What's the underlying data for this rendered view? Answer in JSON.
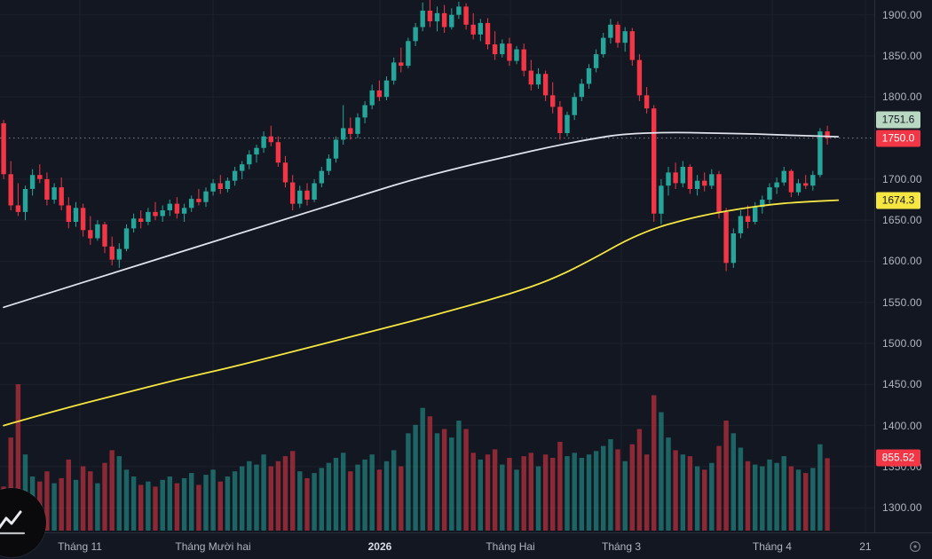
{
  "colors": {
    "background": "#131722",
    "up": "#26a69a",
    "down": "#f23645",
    "vol_up": "rgba(38,166,154,0.55)",
    "vol_down": "rgba(242,54,69,0.55)",
    "grid": "#1c212b",
    "axis_border": "#2a2e39",
    "axis_text": "#b2b5be",
    "price_line": "#9399a3",
    "ma_white": "#e0e3eb",
    "ma_yellow": "#f5e642"
  },
  "chart_data": {
    "type": "candlestick",
    "title": "",
    "slots": 121,
    "y_axis": {
      "min": 1270,
      "max": 1918,
      "ticks": [
        {
          "value": 1900,
          "label": "1900.00"
        },
        {
          "value": 1850,
          "label": "1850.00"
        },
        {
          "value": 1800,
          "label": "1800.00"
        },
        {
          "value": 1700,
          "label": "1700.00"
        },
        {
          "value": 1650,
          "label": "1650.00"
        },
        {
          "value": 1600,
          "label": "1600.00"
        },
        {
          "value": 1550,
          "label": "1550.00"
        },
        {
          "value": 1500,
          "label": "1500.00"
        },
        {
          "value": 1450,
          "label": "1450.00"
        },
        {
          "value": 1400,
          "label": "1400.00"
        },
        {
          "value": 1350,
          "label": "1350.00"
        },
        {
          "value": 1300,
          "label": "1300.00"
        }
      ]
    },
    "x_labels": [
      {
        "text": "Tháng 11",
        "xf": 0.0914,
        "year": false
      },
      {
        "text": "Tháng Mười hai",
        "xf": 0.2437,
        "year": false
      },
      {
        "text": "2026",
        "xf": 0.4345,
        "year": true
      },
      {
        "text": "Tháng Hai",
        "xf": 0.5838,
        "year": false
      },
      {
        "text": "Tháng 3",
        "xf": 0.7107,
        "year": false
      },
      {
        "text": "Tháng 4",
        "xf": 0.8832,
        "year": false
      },
      {
        "text": "21",
        "xf": 0.9898,
        "year": false
      }
    ],
    "last_price": {
      "price": 1750.0,
      "label": "1750.0"
    },
    "volume_max": 1730,
    "badges": [
      {
        "name": "ma-white-value-badge",
        "text": "1751.6",
        "price": 1751.6,
        "bg": "#b9d8c2",
        "fg": "#131722"
      },
      {
        "name": "last-price-badge",
        "text": "1750.0",
        "price": 1750.0,
        "bg": "#f23645",
        "fg": "#ffffff"
      },
      {
        "name": "ma-yellow-value-badge",
        "text": "1674.3",
        "price": 1674.3,
        "bg": "#f5e642",
        "fg": "#131722"
      }
    ],
    "volume_badge": {
      "text": "855.52",
      "bg": "#f23645",
      "fg": "#ffffff"
    },
    "overlays": [
      {
        "name": "ma-white",
        "color": "#e0e3eb",
        "points": [
          [
            0,
            1544
          ],
          [
            8,
            1566
          ],
          [
            16,
            1588
          ],
          [
            24,
            1610
          ],
          [
            32,
            1632
          ],
          [
            40,
            1654
          ],
          [
            48,
            1676
          ],
          [
            56,
            1698
          ],
          [
            64,
            1716
          ],
          [
            70,
            1728
          ],
          [
            76,
            1740
          ],
          [
            82,
            1750
          ],
          [
            86,
            1755
          ],
          [
            92,
            1757
          ],
          [
            98,
            1756
          ],
          [
            104,
            1755
          ],
          [
            110,
            1753
          ],
          [
            115.5,
            1751.6
          ]
        ]
      },
      {
        "name": "ma-yellow",
        "color": "#f5e642",
        "points": [
          [
            0,
            1400
          ],
          [
            8,
            1420
          ],
          [
            16,
            1438
          ],
          [
            24,
            1456
          ],
          [
            32,
            1472
          ],
          [
            40,
            1490
          ],
          [
            48,
            1508
          ],
          [
            56,
            1526
          ],
          [
            64,
            1545
          ],
          [
            70,
            1560
          ],
          [
            76,
            1578
          ],
          [
            82,
            1605
          ],
          [
            86,
            1625
          ],
          [
            90,
            1640
          ],
          [
            94,
            1650
          ],
          [
            98,
            1658
          ],
          [
            102,
            1664
          ],
          [
            106,
            1669
          ],
          [
            110,
            1672
          ],
          [
            115.5,
            1674.3
          ]
        ]
      }
    ],
    "candles": [
      [
        1768,
        1772,
        1700,
        1706,
        520
      ],
      [
        1706,
        1722,
        1662,
        1668,
        1100
      ],
      [
        1668,
        1695,
        1655,
        1660,
        1730
      ],
      [
        1660,
        1692,
        1650,
        1688,
        900
      ],
      [
        1688,
        1712,
        1680,
        1705,
        640
      ],
      [
        1705,
        1718,
        1695,
        1700,
        580
      ],
      [
        1700,
        1708,
        1668,
        1675,
        700
      ],
      [
        1675,
        1695,
        1670,
        1690,
        560
      ],
      [
        1690,
        1702,
        1662,
        1668,
        620
      ],
      [
        1668,
        1678,
        1640,
        1648,
        840
      ],
      [
        1648,
        1672,
        1642,
        1665,
        600
      ],
      [
        1665,
        1670,
        1630,
        1638,
        760
      ],
      [
        1638,
        1655,
        1620,
        1628,
        700
      ],
      [
        1628,
        1650,
        1625,
        1645,
        560
      ],
      [
        1645,
        1648,
        1610,
        1618,
        800
      ],
      [
        1618,
        1630,
        1595,
        1602,
        950
      ],
      [
        1602,
        1622,
        1592,
        1615,
        880
      ],
      [
        1615,
        1645,
        1612,
        1640,
        720
      ],
      [
        1640,
        1658,
        1635,
        1652,
        640
      ],
      [
        1652,
        1662,
        1640,
        1648,
        540
      ],
      [
        1648,
        1665,
        1644,
        1660,
        580
      ],
      [
        1660,
        1672,
        1650,
        1655,
        520
      ],
      [
        1655,
        1668,
        1648,
        1662,
        600
      ],
      [
        1662,
        1675,
        1655,
        1670,
        640
      ],
      [
        1670,
        1678,
        1652,
        1658,
        560
      ],
      [
        1658,
        1670,
        1648,
        1665,
        620
      ],
      [
        1665,
        1680,
        1660,
        1676,
        680
      ],
      [
        1676,
        1688,
        1668,
        1672,
        540
      ],
      [
        1672,
        1690,
        1666,
        1685,
        660
      ],
      [
        1685,
        1700,
        1680,
        1695,
        720
      ],
      [
        1695,
        1705,
        1682,
        1688,
        580
      ],
      [
        1688,
        1702,
        1684,
        1698,
        640
      ],
      [
        1698,
        1715,
        1692,
        1710,
        700
      ],
      [
        1710,
        1722,
        1700,
        1718,
        760
      ],
      [
        1718,
        1735,
        1712,
        1730,
        820
      ],
      [
        1730,
        1742,
        1720,
        1738,
        780
      ],
      [
        1738,
        1758,
        1732,
        1752,
        900
      ],
      [
        1752,
        1765,
        1740,
        1745,
        760
      ],
      [
        1745,
        1752,
        1715,
        1720,
        820
      ],
      [
        1720,
        1728,
        1690,
        1696,
        880
      ],
      [
        1696,
        1705,
        1662,
        1670,
        940
      ],
      [
        1670,
        1692,
        1665,
        1686,
        700
      ],
      [
        1686,
        1695,
        1668,
        1675,
        620
      ],
      [
        1675,
        1700,
        1672,
        1695,
        680
      ],
      [
        1695,
        1715,
        1690,
        1710,
        740
      ],
      [
        1710,
        1730,
        1705,
        1725,
        800
      ],
      [
        1725,
        1752,
        1720,
        1748,
        860
      ],
      [
        1748,
        1790,
        1742,
        1762,
        920
      ],
      [
        1762,
        1775,
        1748,
        1755,
        700
      ],
      [
        1755,
        1780,
        1750,
        1775,
        780
      ],
      [
        1775,
        1795,
        1768,
        1790,
        840
      ],
      [
        1790,
        1815,
        1785,
        1808,
        900
      ],
      [
        1808,
        1820,
        1795,
        1800,
        720
      ],
      [
        1800,
        1825,
        1796,
        1820,
        820
      ],
      [
        1820,
        1848,
        1815,
        1842,
        950
      ],
      [
        1842,
        1860,
        1830,
        1838,
        760
      ],
      [
        1838,
        1872,
        1835,
        1868,
        1150
      ],
      [
        1868,
        1890,
        1862,
        1885,
        1250
      ],
      [
        1885,
        1915,
        1880,
        1905,
        1450
      ],
      [
        1905,
        1918,
        1885,
        1892,
        1350
      ],
      [
        1892,
        1910,
        1880,
        1902,
        1150
      ],
      [
        1902,
        1912,
        1878,
        1885,
        1200
      ],
      [
        1885,
        1908,
        1882,
        1900,
        1100
      ],
      [
        1900,
        1916,
        1895,
        1910,
        1300
      ],
      [
        1910,
        1914,
        1882,
        1888,
        1200
      ],
      [
        1888,
        1902,
        1870,
        1876,
        920
      ],
      [
        1876,
        1895,
        1868,
        1890,
        840
      ],
      [
        1890,
        1896,
        1858,
        1864,
        900
      ],
      [
        1864,
        1880,
        1845,
        1852,
        960
      ],
      [
        1852,
        1870,
        1848,
        1865,
        780
      ],
      [
        1865,
        1872,
        1838,
        1844,
        860
      ],
      [
        1844,
        1862,
        1840,
        1858,
        720
      ],
      [
        1858,
        1865,
        1825,
        1832,
        880
      ],
      [
        1832,
        1845,
        1808,
        1815,
        920
      ],
      [
        1815,
        1835,
        1810,
        1828,
        760
      ],
      [
        1828,
        1832,
        1795,
        1802,
        900
      ],
      [
        1802,
        1818,
        1780,
        1788,
        860
      ],
      [
        1788,
        1795,
        1748,
        1756,
        1050
      ],
      [
        1756,
        1782,
        1752,
        1778,
        880
      ],
      [
        1778,
        1805,
        1772,
        1800,
        920
      ],
      [
        1800,
        1822,
        1795,
        1816,
        860
      ],
      [
        1816,
        1840,
        1810,
        1835,
        900
      ],
      [
        1835,
        1858,
        1830,
        1852,
        940
      ],
      [
        1852,
        1878,
        1848,
        1872,
        1000
      ],
      [
        1872,
        1895,
        1865,
        1888,
        1080
      ],
      [
        1888,
        1892,
        1860,
        1866,
        960
      ],
      [
        1866,
        1885,
        1855,
        1880,
        820
      ],
      [
        1880,
        1884,
        1838,
        1845,
        1020
      ],
      [
        1845,
        1852,
        1795,
        1802,
        1200
      ],
      [
        1802,
        1812,
        1780,
        1786,
        900
      ],
      [
        1786,
        1790,
        1648,
        1658,
        1600
      ],
      [
        1658,
        1700,
        1645,
        1692,
        1400
      ],
      [
        1692,
        1715,
        1680,
        1708,
        1100
      ],
      [
        1708,
        1720,
        1688,
        1695,
        950
      ],
      [
        1695,
        1722,
        1690,
        1715,
        900
      ],
      [
        1715,
        1718,
        1682,
        1688,
        880
      ],
      [
        1688,
        1705,
        1680,
        1698,
        760
      ],
      [
        1698,
        1708,
        1685,
        1692,
        720
      ],
      [
        1692,
        1712,
        1688,
        1706,
        800
      ],
      [
        1706,
        1710,
        1652,
        1660,
        1000
      ],
      [
        1660,
        1665,
        1588,
        1598,
        1300
      ],
      [
        1598,
        1640,
        1592,
        1634,
        1150
      ],
      [
        1634,
        1662,
        1628,
        1655,
        980
      ],
      [
        1655,
        1668,
        1640,
        1648,
        820
      ],
      [
        1648,
        1672,
        1645,
        1666,
        780
      ],
      [
        1666,
        1680,
        1658,
        1675,
        760
      ],
      [
        1675,
        1695,
        1670,
        1690,
        840
      ],
      [
        1690,
        1702,
        1682,
        1696,
        800
      ],
      [
        1696,
        1715,
        1692,
        1710,
        880
      ],
      [
        1710,
        1712,
        1678,
        1684,
        760
      ],
      [
        1684,
        1700,
        1680,
        1695,
        720
      ],
      [
        1695,
        1705,
        1688,
        1692,
        680
      ],
      [
        1692,
        1710,
        1686,
        1705,
        740
      ],
      [
        1705,
        1762,
        1702,
        1758,
        1020
      ],
      [
        1758,
        1765,
        1742,
        1750,
        855.52
      ]
    ]
  },
  "icons": {
    "scope": "target-icon",
    "logo": "symbol-logo"
  }
}
